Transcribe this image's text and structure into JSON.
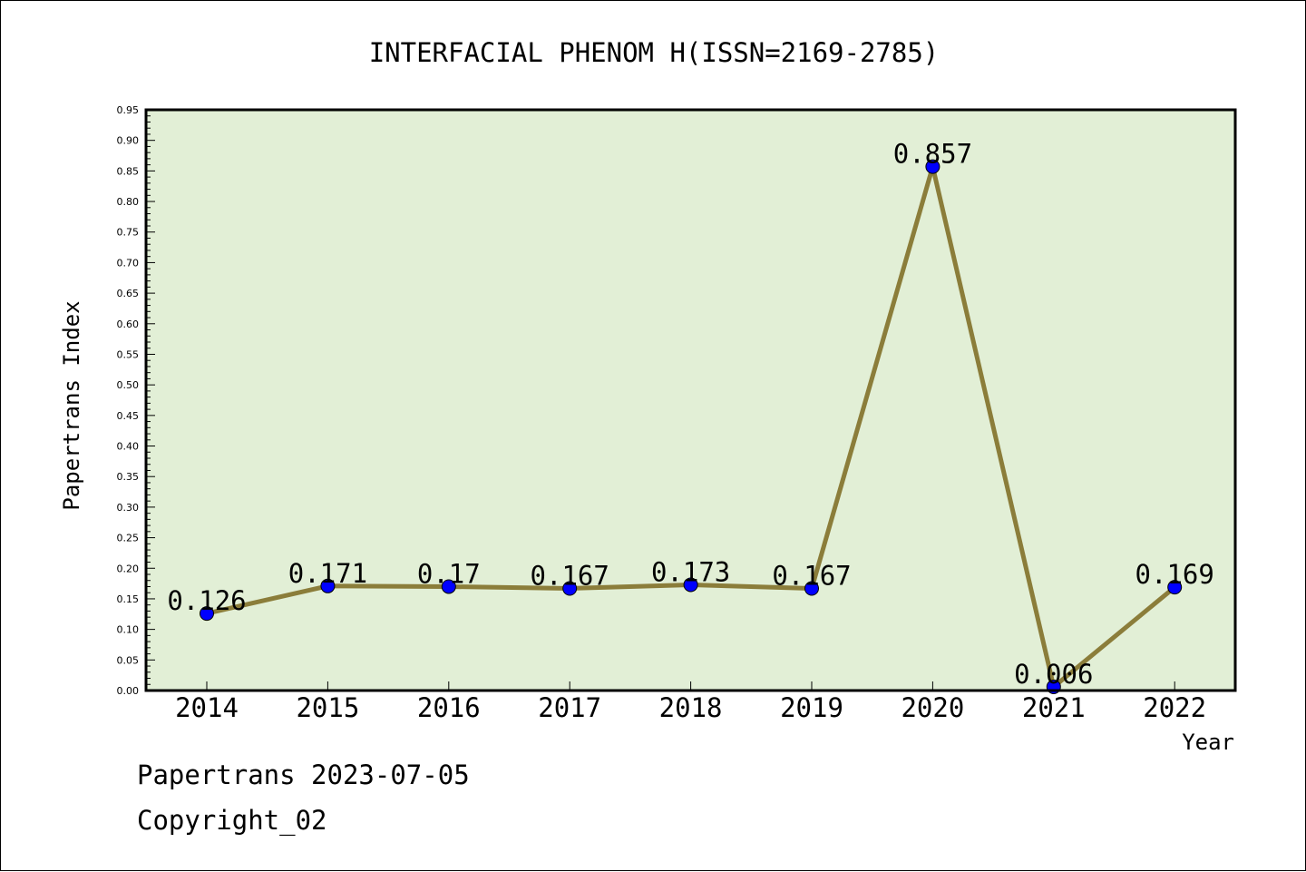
{
  "footer": {
    "credit": "Papertrans 2023-07-05",
    "copyright": "Copyright_02"
  },
  "chart_data": {
    "type": "line",
    "title": "INTERFACIAL PHENOM H(ISSN=2169-2785)",
    "xlabel": "Year",
    "ylabel": "Papertrans Index",
    "categories": [
      "2014",
      "2015",
      "2016",
      "2017",
      "2018",
      "2019",
      "2020",
      "2021",
      "2022"
    ],
    "series": [
      {
        "values": [
          0.126,
          0.171,
          0.17,
          0.167,
          0.173,
          0.167,
          0.857,
          0.006,
          0.169
        ],
        "labels": [
          "0.126",
          "0.171",
          "0.17",
          "0.167",
          "0.173",
          "0.167",
          "0.857",
          "0.006",
          "0.169"
        ]
      }
    ],
    "ylim": [
      0,
      0.95
    ],
    "yticks": [
      "0.00",
      "0.05",
      "0.10",
      "0.15",
      "0.20",
      "0.25",
      "0.30",
      "0.35",
      "0.40",
      "0.45",
      "0.50",
      "0.55",
      "0.60",
      "0.65",
      "0.70",
      "0.75",
      "0.80",
      "0.85",
      "0.90",
      "0.95"
    ],
    "grid": false,
    "legend": "none",
    "colors": {
      "plot_background": "#e2efd6",
      "line": "#8b7d3a",
      "marker": "#0000ff",
      "axis": "#000000"
    }
  }
}
